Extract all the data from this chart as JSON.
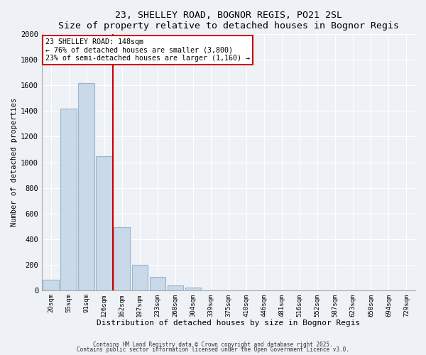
{
  "title": "23, SHELLEY ROAD, BOGNOR REGIS, PO21 2SL",
  "subtitle": "Size of property relative to detached houses in Bognor Regis",
  "xlabel": "Distribution of detached houses by size in Bognor Regis",
  "ylabel": "Number of detached properties",
  "bar_labels": [
    "20sqm",
    "55sqm",
    "91sqm",
    "126sqm",
    "162sqm",
    "197sqm",
    "233sqm",
    "268sqm",
    "304sqm",
    "339sqm",
    "375sqm",
    "410sqm",
    "446sqm",
    "481sqm",
    "516sqm",
    "552sqm",
    "587sqm",
    "623sqm",
    "658sqm",
    "694sqm",
    "729sqm"
  ],
  "bar_values": [
    80,
    1420,
    1620,
    1050,
    490,
    200,
    105,
    40,
    20,
    0,
    0,
    0,
    0,
    0,
    0,
    0,
    0,
    0,
    0,
    0,
    0
  ],
  "bar_color": "#c9d9e8",
  "bar_edge_color": "#9ab4cb",
  "vline_color": "#cc0000",
  "vline_bar_index": 3,
  "annotation_title": "23 SHELLEY ROAD: 148sqm",
  "annotation_line1": "← 76% of detached houses are smaller (3,800)",
  "annotation_line2": "23% of semi-detached houses are larger (1,160) →",
  "annotation_box_color": "#ffffff",
  "annotation_box_edge": "#cc0000",
  "ylim": [
    0,
    2000
  ],
  "yticks": [
    0,
    200,
    400,
    600,
    800,
    1000,
    1200,
    1400,
    1600,
    1800,
    2000
  ],
  "bg_color": "#eef2f7",
  "grid_color": "#ffffff",
  "footer1": "Contains HM Land Registry data © Crown copyright and database right 2025.",
  "footer2": "Contains public sector information licensed under the Open Government Licence v3.0."
}
